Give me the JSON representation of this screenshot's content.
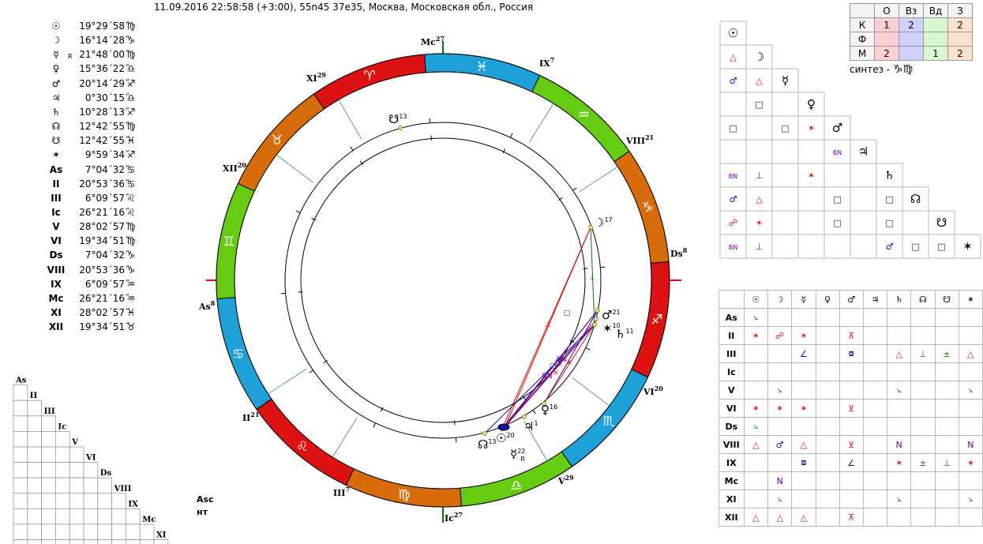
{
  "header": {
    "text": "11.09.2016 22:58:58 (+3:00), 55n45 37e35, Москва, Московская обл., Россия"
  },
  "planets": [
    {
      "glyph": "☉",
      "retro": "",
      "deg": "19°29´58˝",
      "sign": "♍"
    },
    {
      "glyph": "☽",
      "retro": "",
      "deg": "16°14´28˝",
      "sign": "♑"
    },
    {
      "glyph": "☿",
      "retro": "R",
      "deg": "21°48´00˝",
      "sign": "♍"
    },
    {
      "glyph": "♀",
      "retro": "",
      "deg": "15°36´22˝",
      "sign": "♎"
    },
    {
      "glyph": "♂",
      "retro": "",
      "deg": "20°14´29˝",
      "sign": "♐"
    },
    {
      "glyph": "♃",
      "retro": "",
      "deg": "0°30´15˝",
      "sign": "♎"
    },
    {
      "glyph": "♄",
      "retro": "",
      "deg": "10°28´13˝",
      "sign": "♐"
    },
    {
      "glyph": "☊",
      "retro": "",
      "deg": "12°42´55˝",
      "sign": "♍"
    },
    {
      "glyph": "☋",
      "retro": "",
      "deg": "12°42´55˝",
      "sign": "♓"
    },
    {
      "glyph": "✶",
      "retro": "",
      "deg": "9°59´34˝",
      "sign": "♐"
    },
    {
      "glyph": "As",
      "retro": "",
      "deg": "7°04´32˝",
      "sign": "♋"
    },
    {
      "glyph": "II",
      "retro": "",
      "deg": "20°53´36˝",
      "sign": "♋"
    },
    {
      "glyph": "III",
      "retro": "",
      "deg": "6°09´57˝",
      "sign": "♌"
    },
    {
      "glyph": "Ic",
      "retro": "",
      "deg": "26°21´16˝",
      "sign": "♌"
    },
    {
      "glyph": "V",
      "retro": "",
      "deg": "28°02´57˝",
      "sign": "♍"
    },
    {
      "glyph": "VI",
      "retro": "",
      "deg": "19°34´51˝",
      "sign": "♍"
    },
    {
      "glyph": "Ds",
      "retro": "",
      "deg": "7°04´32˝",
      "sign": "♑"
    },
    {
      "glyph": "VIII",
      "retro": "",
      "deg": "20°53´36˝",
      "sign": "♑"
    },
    {
      "glyph": "IX",
      "retro": "",
      "deg": "6°09´57˝",
      "sign": "♒"
    },
    {
      "glyph": "Mc",
      "retro": "",
      "deg": "26°21´16˝",
      "sign": "♒"
    },
    {
      "glyph": "XI",
      "retro": "",
      "deg": "28°02´57˝",
      "sign": "♓"
    },
    {
      "glyph": "XII",
      "retro": "",
      "deg": "19°34´51˝",
      "sign": "♉"
    }
  ],
  "wheel": {
    "signs": [
      {
        "glyph": "♓",
        "color": "#1ea0d8"
      },
      {
        "glyph": "♒",
        "color": "#66cc11"
      },
      {
        "glyph": "♑",
        "color": "#d96c0a"
      },
      {
        "glyph": "♐",
        "color": "#dd1111"
      },
      {
        "glyph": "♏",
        "color": "#1ea0d8"
      },
      {
        "glyph": "♎",
        "color": "#66cc11"
      },
      {
        "glyph": "♍",
        "color": "#d96c0a"
      },
      {
        "glyph": "♌",
        "color": "#dd1111"
      },
      {
        "glyph": "♋",
        "color": "#1ea0d8"
      },
      {
        "glyph": "♊",
        "color": "#66cc11"
      },
      {
        "glyph": "♉",
        "color": "#d96c0a"
      },
      {
        "glyph": "♈",
        "color": "#dd1111"
      }
    ],
    "cusps": [
      {
        "label": "Mc",
        "deg": "27"
      },
      {
        "label": "IX",
        "deg": "7"
      },
      {
        "label": "VIII",
        "deg": "21"
      },
      {
        "label": "Ds",
        "deg": "8"
      },
      {
        "label": "VI",
        "deg": "20"
      },
      {
        "label": "V",
        "deg": "29"
      },
      {
        "label": "Ic",
        "deg": "27"
      },
      {
        "label": "III",
        "deg": "7"
      },
      {
        "label": "II",
        "deg": "21"
      },
      {
        "label": "As",
        "deg": "8"
      },
      {
        "label": "XII",
        "deg": "20"
      },
      {
        "label": "XI",
        "deg": "29"
      }
    ],
    "planets": [
      {
        "glyph": "☋",
        "deg": "13"
      },
      {
        "glyph": "☽",
        "deg": "17"
      },
      {
        "glyph": "♂",
        "deg": "21"
      },
      {
        "glyph": "✶",
        "deg": "10"
      },
      {
        "glyph": "♄",
        "deg": "11"
      },
      {
        "glyph": "♀",
        "deg": "16"
      },
      {
        "glyph": "♃",
        "deg": "1"
      },
      {
        "glyph": "☉",
        "deg": "20"
      },
      {
        "glyph": "☊",
        "deg": "13"
      },
      {
        "glyph": "☿",
        "deg": "22",
        "retro": "R"
      }
    ],
    "aspect_marks": [
      "△",
      "⊥",
      "□",
      "□",
      "BN",
      "BN",
      "□",
      "✕",
      "✕"
    ]
  },
  "mode_table": {
    "headers": [
      "",
      "О",
      "Вз",
      "Вд",
      "З"
    ],
    "rows": [
      {
        "label": "К",
        "cells": [
          "1",
          "2",
          "",
          "2"
        ]
      },
      {
        "label": "Ф",
        "cells": [
          "",
          "",
          "",
          ""
        ]
      },
      {
        "label": "М",
        "cells": [
          "2",
          "",
          "1",
          "2"
        ]
      }
    ]
  },
  "synthesis": {
    "label": "синтез -",
    "signs": "♑♍"
  },
  "aspect_grid": {
    "bodies": [
      "☉",
      "☽",
      "☿",
      "♀",
      "♂",
      "♃",
      "♄",
      "☊",
      "☋",
      "✶"
    ],
    "rows": [
      [],
      [
        "△"
      ],
      [
        "♂",
        "△"
      ],
      [
        "",
        "□"
      ],
      [
        "□",
        "",
        "□",
        "✶"
      ],
      [
        "",
        "",
        "",
        "",
        "BN"
      ],
      [
        "BN",
        "⊥",
        "",
        "✶"
      ],
      [
        "♂",
        "△",
        "",
        "",
        "□",
        "",
        "□"
      ],
      [
        "☍",
        "✶",
        "",
        "",
        "□",
        "",
        "□"
      ],
      [
        "BN",
        "⊥",
        "",
        "",
        "",
        "",
        "♂",
        "□",
        "□"
      ]
    ]
  },
  "cusp_table": {
    "headers": [
      "☉",
      "☽",
      "☿",
      "♀",
      "♂",
      "♃",
      "♄",
      "☊",
      "☋",
      "✶"
    ],
    "rows": [
      {
        "label": "As",
        "cells": [
          "⦣",
          "",
          "",
          "",
          "",
          "",
          "",
          "",
          "",
          ""
        ]
      },
      {
        "label": "II",
        "cells": [
          "✶",
          "☍",
          "✶",
          "",
          "⊼",
          "",
          "",
          "",
          "",
          ""
        ]
      },
      {
        "label": "III",
        "cells": [
          "",
          "",
          "∠",
          "",
          "⧇",
          "",
          "△",
          "⊥",
          "±",
          "△"
        ]
      },
      {
        "label": "Ic",
        "cells": [
          "",
          "",
          "",
          "",
          "",
          "",
          "",
          "",
          "",
          ""
        ]
      },
      {
        "label": "V",
        "cells": [
          "",
          "⦣",
          "",
          "",
          "",
          "",
          "⦣",
          "",
          "",
          "⦣"
        ]
      },
      {
        "label": "VI",
        "cells": [
          "✶",
          "✶",
          "✶",
          "",
          "⊻",
          "",
          "",
          "",
          "",
          ""
        ]
      },
      {
        "label": "Ds",
        "cells": [
          "⦣",
          "",
          "",
          "",
          "",
          "",
          "",
          "",
          "",
          ""
        ]
      },
      {
        "label": "VIII",
        "cells": [
          "△",
          "♂",
          "△",
          "",
          "⊻",
          "",
          "N",
          "",
          "",
          "N"
        ]
      },
      {
        "label": "IX",
        "cells": [
          "",
          "",
          "⧇",
          "",
          "∠",
          "",
          "✶",
          "±",
          "⊥",
          "✶"
        ]
      },
      {
        "label": "Mc",
        "cells": [
          "",
          "N",
          "",
          "",
          "",
          "",
          "",
          "",
          "",
          ""
        ]
      },
      {
        "label": "XI",
        "cells": [
          "",
          "⦣",
          "",
          "",
          "",
          "",
          "⦣",
          "",
          "",
          "⦣"
        ]
      },
      {
        "label": "XII",
        "cells": [
          "△",
          "△",
          "△",
          "",
          "⊼",
          "",
          "",
          "",
          "",
          ""
        ]
      }
    ]
  },
  "house_grid": {
    "labels": [
      "As",
      "II",
      "III",
      "Ic",
      "V",
      "VI",
      "Ds",
      "VIII",
      "IX",
      "Mc",
      "XI"
    ]
  },
  "footer_note": {
    "line1": "Asc",
    "line2": "нт"
  },
  "colors": {
    "red": "#dd1111",
    "blue": "#1010aa",
    "green": "#007700",
    "purple": "#6600aa",
    "grid": "#b8b8b8"
  }
}
